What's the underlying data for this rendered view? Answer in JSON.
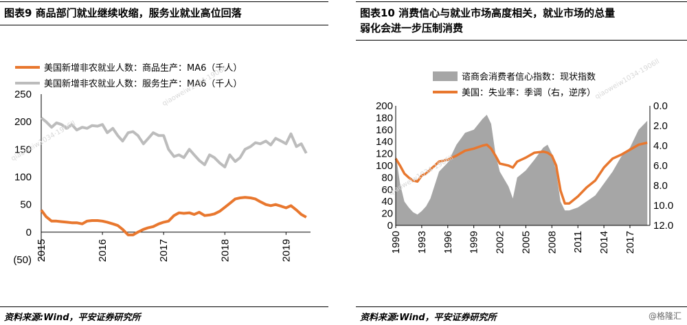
{
  "left_panel": {
    "title": "图表9      商品部门就业继续收缩，服务业就业高位回落",
    "source": "资料来源:Wind，平安证券研究所"
  },
  "right_panel": {
    "title": "图表10     消费信心与就业市场高度相关，就业市场的总量\n弱化会进一步压制消费",
    "source": "资料来源:Wind，平安证券研究所"
  },
  "watermarks": [
    "qiaoweiw1034·1906ll",
    "qiaoweiw1034·1906ll",
    "qiaoweiw1034·1906ll",
    "qiaoweiw1034·1906ll"
  ],
  "credit": "@格隆汇",
  "chart_data": [
    {
      "type": "line",
      "title": "",
      "xlabel": "",
      "ylabel": "",
      "ylim": [
        -50,
        250
      ],
      "xlim": [
        2015,
        2019.4
      ],
      "y_ticks": [
        "250",
        "200",
        "150",
        "100",
        "50",
        "0",
        "(50)"
      ],
      "x_ticks": [
        "2015",
        "2016",
        "2017",
        "2018",
        "2019"
      ],
      "legend_position": "top-left",
      "grid": false,
      "series": [
        {
          "name": "美国新增非农就业人数：商品生产：MA6（千人）",
          "color": "#e8772e",
          "x": [
            2015.0,
            2015.08,
            2015.17,
            2015.25,
            2015.33,
            2015.42,
            2015.5,
            2015.58,
            2015.67,
            2015.75,
            2015.83,
            2015.92,
            2016.0,
            2016.08,
            2016.17,
            2016.25,
            2016.33,
            2016.42,
            2016.5,
            2016.58,
            2016.67,
            2016.75,
            2016.83,
            2016.92,
            2017.0,
            2017.08,
            2017.17,
            2017.25,
            2017.33,
            2017.42,
            2017.5,
            2017.58,
            2017.67,
            2017.75,
            2017.83,
            2017.92,
            2018.0,
            2018.08,
            2018.17,
            2018.25,
            2018.33,
            2018.42,
            2018.5,
            2018.58,
            2018.67,
            2018.75,
            2018.83,
            2018.92,
            2019.0,
            2019.08,
            2019.17,
            2019.25,
            2019.33
          ],
          "values": [
            40,
            28,
            20,
            20,
            19,
            18,
            17,
            17,
            15,
            20,
            21,
            21,
            20,
            18,
            15,
            12,
            5,
            -5,
            -5,
            0,
            5,
            8,
            10,
            15,
            18,
            20,
            30,
            35,
            34,
            35,
            32,
            36,
            30,
            31,
            33,
            38,
            45,
            52,
            60,
            62,
            63,
            62,
            60,
            55,
            50,
            48,
            50,
            47,
            44,
            48,
            40,
            32,
            27
          ]
        },
        {
          "name": "美国新增非农就业人数：服务生产：MA6（千人）",
          "color": "#bcbcbc",
          "x": [
            2015.0,
            2015.08,
            2015.17,
            2015.25,
            2015.33,
            2015.42,
            2015.5,
            2015.58,
            2015.67,
            2015.75,
            2015.83,
            2015.92,
            2016.0,
            2016.08,
            2016.17,
            2016.25,
            2016.33,
            2016.42,
            2016.5,
            2016.58,
            2016.67,
            2016.75,
            2016.83,
            2016.92,
            2017.0,
            2017.08,
            2017.17,
            2017.25,
            2017.33,
            2017.42,
            2017.5,
            2017.58,
            2017.67,
            2017.75,
            2017.83,
            2017.92,
            2018.0,
            2018.08,
            2018.17,
            2018.25,
            2018.33,
            2018.42,
            2018.5,
            2018.58,
            2018.67,
            2018.75,
            2018.83,
            2018.92,
            2019.0,
            2019.08,
            2019.17,
            2019.25,
            2019.33
          ],
          "values": [
            207,
            200,
            190,
            198,
            195,
            188,
            195,
            185,
            190,
            188,
            193,
            192,
            195,
            180,
            188,
            175,
            165,
            180,
            182,
            175,
            160,
            170,
            180,
            175,
            175,
            150,
            137,
            140,
            135,
            150,
            140,
            130,
            122,
            140,
            135,
            125,
            118,
            140,
            128,
            135,
            150,
            155,
            162,
            160,
            165,
            158,
            170,
            165,
            160,
            178,
            155,
            160,
            143
          ]
        }
      ]
    },
    {
      "type": "area",
      "title": "",
      "xlabel": "",
      "ylabel": "",
      "ylim": [
        0,
        200
      ],
      "y2lim": [
        0,
        12
      ],
      "y2_inverted": true,
      "xlim": [
        1990,
        2019.3
      ],
      "y_ticks": [
        "200",
        "180",
        "160",
        "140",
        "120",
        "100",
        "80",
        "60",
        "40",
        "20",
        "0"
      ],
      "y2_ticks": [
        "0.0",
        "2.0",
        "4.0",
        "6.0",
        "8.0",
        "10.0",
        "12.0"
      ],
      "x_ticks": [
        "1990",
        "1993",
        "1996",
        "1999",
        "2002",
        "2005",
        "2008",
        "2011",
        "2014",
        "2017"
      ],
      "legend_position": "top",
      "grid": false,
      "series": [
        {
          "name": "谘商会消费者信心指数：现状指数",
          "color": "#a6a6a6",
          "axis": "left",
          "x": [
            1990,
            1990.5,
            1991,
            1991.5,
            1992,
            1992.5,
            1993,
            1993.5,
            1994,
            1995,
            1996,
            1997,
            1998,
            1999,
            2000,
            2000.5,
            2001,
            2001.5,
            2002,
            2003,
            2003.5,
            2004,
            2005,
            2006,
            2007,
            2007.5,
            2008,
            2008.5,
            2009,
            2009.5,
            2010,
            2011,
            2012,
            2013,
            2014,
            2015,
            2016,
            2017,
            2018,
            2019
          ],
          "values": [
            120,
            70,
            40,
            30,
            22,
            18,
            24,
            32,
            45,
            90,
            105,
            135,
            155,
            160,
            178,
            185,
            170,
            120,
            90,
            65,
            45,
            80,
            92,
            110,
            130,
            135,
            120,
            90,
            40,
            25,
            25,
            30,
            40,
            50,
            70,
            90,
            115,
            130,
            160,
            175
          ]
        },
        {
          "name": "美国：失业率：季调（右，逆序）",
          "color": "#e8772e",
          "axis": "right",
          "x": [
            1990,
            1990.5,
            1991,
            1991.5,
            1992,
            1992.5,
            1993,
            1993.5,
            1994,
            1995,
            1996,
            1997,
            1998,
            1999,
            2000,
            2000.5,
            2001,
            2001.5,
            2002,
            2003,
            2003.5,
            2004,
            2005,
            2006,
            2007,
            2007.5,
            2008,
            2008.5,
            2009,
            2009.5,
            2010,
            2011,
            2012,
            2013,
            2014,
            2015,
            2016,
            2017,
            2018,
            2019
          ],
          "values": [
            5.3,
            6.0,
            6.8,
            7.2,
            7.5,
            7.6,
            7.0,
            6.8,
            6.4,
            5.6,
            5.4,
            5.0,
            4.5,
            4.3,
            4.0,
            3.9,
            4.3,
            5.0,
            5.8,
            6.0,
            6.2,
            5.6,
            5.2,
            4.7,
            4.6,
            4.7,
            5.0,
            6.0,
            8.5,
            9.8,
            9.8,
            9.1,
            8.2,
            7.5,
            6.2,
            5.3,
            4.9,
            4.4,
            3.9,
            3.7
          ]
        }
      ]
    }
  ]
}
